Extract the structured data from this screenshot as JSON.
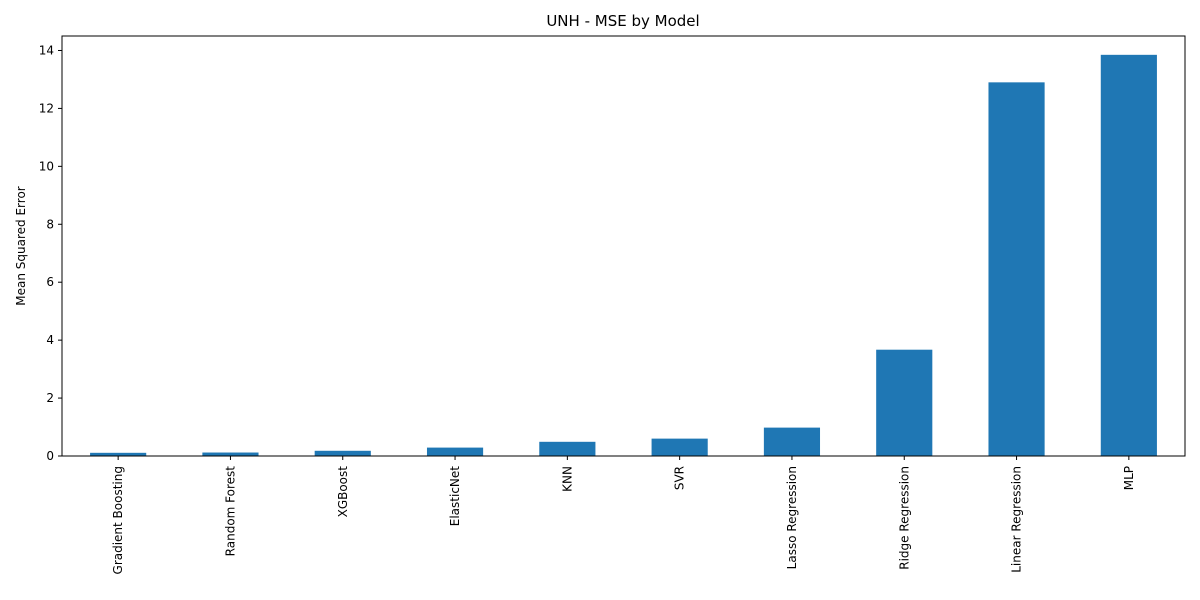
{
  "chart_data": {
    "type": "bar",
    "title": "UNH - MSE by Model",
    "xlabel": "",
    "ylabel": "Mean Squared Error",
    "categories": [
      "Gradient Boosting",
      "Random Forest",
      "XGBoost",
      "ElasticNet",
      "KNN",
      "SVR",
      "Lasso Regression",
      "Ridge Regression",
      "Linear Regression",
      "MLP"
    ],
    "values": [
      0.11,
      0.12,
      0.18,
      0.29,
      0.49,
      0.6,
      0.98,
      3.67,
      12.9,
      13.85
    ],
    "ylim": [
      0,
      14.5
    ],
    "yticks": [
      0,
      2,
      4,
      6,
      8,
      10,
      12,
      14
    ],
    "grid": false,
    "bar_color": "#1f77b4"
  }
}
